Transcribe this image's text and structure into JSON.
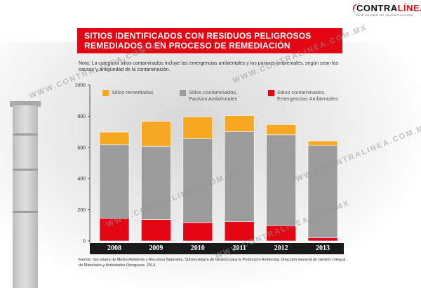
{
  "logo": {
    "word_black": "CONTRA",
    "word_red": "LÍNEA",
    "tagline": "PERIODISMO DE INVESTIGACIÓN"
  },
  "title": {
    "line1": "SITIOS IDENTIFICADOS CON RESIDUOS PELIGROSOS",
    "line2": "REMEDIADOS O EN PROCESO DE REMEDIACIÓN"
  },
  "note": "Nota: La categoría sitios contaminados incluye las emergencias ambientales y los pasivos ambientales, según sean las causas y antigüedad de la contaminación.",
  "source": "Fuente: Secretaría de Medio Ambiente y Recursos Naturales, Subsecretaría de Gestión para la Protección Ambiental, Dirección General de Gestión Integral de Materiales y Actividades Riesgosas. 2014",
  "watermark": "WWW.CONTRALINEA.COM.MX",
  "colors": {
    "remediados": "#f7a823",
    "pasivos": "#9b9b9b",
    "emergencias": "#e30613",
    "title_bg": "#e30613"
  },
  "chart_data": {
    "type": "bar",
    "stacked": true,
    "categories": [
      "2008",
      "2009",
      "2010",
      "2011",
      "2012",
      "2013"
    ],
    "series": [
      {
        "name": "Sitios contaminados. Emergencias Ambientales",
        "values": [
          145,
          137,
          118,
          123,
          98,
          20
        ]
      },
      {
        "name": "Sitios contaminados. Pasivos Ambientales",
        "values": [
          473,
          470,
          538,
          578,
          583,
          592
        ]
      },
      {
        "name": "Sitios remediados",
        "values": [
          80,
          160,
          140,
          103,
          65,
          28
        ]
      }
    ],
    "legend": [
      {
        "line1": "Sitios remediados",
        "line2": ""
      },
      {
        "line1": "Sitios contaminados.",
        "line2": "Pasivos Ambientales"
      },
      {
        "line1": "Sitios contaminados.",
        "line2": "Emergencias Ambientales"
      }
    ],
    "yticks": [
      0,
      200,
      400,
      600,
      800,
      1000
    ],
    "ylim": [
      0,
      1000
    ],
    "grid": false,
    "legend_position": "top"
  }
}
